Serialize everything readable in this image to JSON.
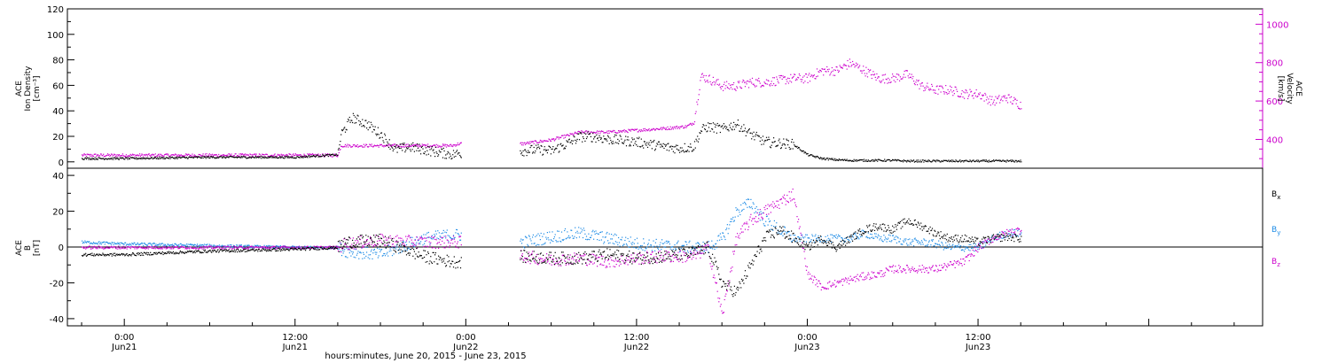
{
  "chart_data": [
    {
      "type": "scatter",
      "panel": "top",
      "ylabel_left": [
        "ACE",
        "Ion Density",
        "[cm⁻³]"
      ],
      "ylabel_right": [
        "ACE",
        "Velocity",
        "[km/s]"
      ],
      "ylim_left": [
        -5,
        120
      ],
      "ylim_right": [
        250,
        1080
      ],
      "yticks_left": [
        "0",
        "20",
        "40",
        "60",
        "80",
        "100",
        "120"
      ],
      "yticks_right": [
        "400",
        "600",
        "800",
        "1000"
      ],
      "colors": {
        "density": "#000000",
        "velocity": "#cc00cc"
      },
      "series": [
        {
          "name": "Ion Density",
          "axis": "left",
          "x_hours": [
            -3,
            0,
            6,
            12,
            15,
            15.2,
            16,
            17,
            18,
            19,
            20,
            21,
            22,
            23,
            23.5,
            28,
            29,
            30,
            31,
            32,
            33,
            34,
            35,
            36,
            37,
            38,
            39,
            40,
            40.5,
            41,
            42,
            43,
            44,
            45,
            46,
            47,
            48,
            49,
            50,
            51,
            52,
            53,
            54,
            55,
            56,
            57,
            58,
            59,
            60,
            61,
            62,
            63
          ],
          "values": [
            3,
            3,
            4,
            4,
            6,
            22,
            35,
            30,
            22,
            10,
            12,
            10,
            8,
            6,
            7,
            9,
            10,
            9,
            14,
            20,
            20,
            18,
            17,
            16,
            14,
            12,
            11,
            12,
            25,
            28,
            26,
            30,
            22,
            16,
            15,
            14,
            6,
            3,
            2,
            1.5,
            1.5,
            1.5,
            1.5,
            1,
            1,
            1,
            1,
            1,
            1,
            1,
            1,
            1
          ]
        },
        {
          "name": "Velocity",
          "axis": "right",
          "x_hours": [
            -3,
            0,
            6,
            12,
            15,
            15.2,
            18,
            21,
            23,
            23.5,
            28,
            29,
            30,
            32,
            34,
            36,
            38,
            39.5,
            40,
            40.5,
            41,
            42,
            43,
            44,
            45,
            46,
            47,
            48,
            49,
            50,
            51,
            52,
            53,
            54,
            55,
            56,
            57,
            58,
            59,
            60,
            61,
            62,
            63
          ],
          "values": [
            320,
            320,
            320,
            320,
            320,
            370,
            370,
            370,
            370,
            380,
            380,
            390,
            400,
            440,
            440,
            450,
            460,
            470,
            490,
            730,
            720,
            680,
            680,
            700,
            700,
            710,
            720,
            720,
            760,
            760,
            800,
            760,
            720,
            720,
            740,
            680,
            660,
            660,
            640,
            640,
            600,
            620,
            580
          ]
        }
      ]
    },
    {
      "type": "scatter",
      "panel": "bottom",
      "ylabel_left": [
        "ACE",
        "B",
        "[nT]"
      ],
      "ylim": [
        -44,
        44
      ],
      "yticks": [
        "-40",
        "-20",
        "0",
        "20",
        "40"
      ],
      "legend": [
        "Bx",
        "By",
        "Bz"
      ],
      "colors": {
        "Bx": "#000000",
        "By": "#1e8ce6",
        "Bz": "#cc00cc"
      },
      "series": [
        {
          "name": "Bx",
          "x_hours": [
            -3,
            0,
            6,
            12,
            15,
            15.5,
            18,
            21,
            23,
            23.5,
            28,
            30,
            32,
            34,
            36,
            38,
            40,
            41,
            42,
            43,
            44,
            45,
            46,
            47,
            48,
            49,
            50,
            51,
            52,
            53,
            54,
            55,
            56,
            57,
            58,
            59,
            60,
            61,
            62,
            63
          ],
          "values": [
            -4,
            -4,
            -2,
            -1,
            0,
            3,
            4,
            -5,
            -8,
            -8,
            -5,
            -6,
            -6,
            -4,
            -6,
            -5,
            -3,
            0,
            -20,
            -25,
            -10,
            5,
            10,
            5,
            0,
            5,
            0,
            5,
            10,
            12,
            10,
            15,
            12,
            8,
            5,
            5,
            3,
            5,
            6,
            5
          ]
        },
        {
          "name": "By",
          "x_hours": [
            -3,
            0,
            6,
            12,
            15,
            15.5,
            18,
            21,
            23,
            23.5,
            28,
            30,
            32,
            34,
            36,
            38,
            40,
            41,
            42,
            43,
            44,
            45,
            46,
            47,
            48,
            49,
            50,
            51,
            52,
            53,
            54,
            55,
            56,
            57,
            58,
            59,
            60,
            61,
            62,
            63
          ],
          "values": [
            3,
            2,
            1,
            0,
            0,
            -2,
            -4,
            5,
            7,
            7,
            3,
            6,
            8,
            5,
            2,
            1,
            0,
            0,
            5,
            20,
            25,
            15,
            10,
            5,
            5,
            5,
            5,
            5,
            8,
            5,
            5,
            3,
            3,
            2,
            0,
            0,
            0,
            5,
            8,
            8
          ]
        },
        {
          "name": "Bz",
          "x_hours": [
            -3,
            0,
            6,
            12,
            15,
            15.5,
            18,
            21,
            23,
            23.5,
            28,
            30,
            32,
            34,
            36,
            38,
            40,
            41,
            42,
            43,
            44,
            45,
            46,
            47,
            48,
            49,
            50,
            51,
            52,
            53,
            54,
            55,
            56,
            57,
            58,
            59,
            60,
            61,
            62,
            63
          ],
          "values": [
            0,
            0,
            0,
            0,
            0,
            2,
            4,
            3,
            3,
            3,
            -5,
            -7,
            -6,
            -8,
            -6,
            -5,
            -5,
            0,
            -38,
            5,
            15,
            20,
            25,
            30,
            -15,
            -22,
            -20,
            -18,
            -16,
            -15,
            -12,
            -12,
            -12,
            -12,
            -10,
            -8,
            0,
            5,
            8,
            10
          ]
        }
      ]
    }
  ],
  "x_axis": {
    "xlim_hours": [
      -4,
      80
    ],
    "ticks": [
      {
        "hour": 0,
        "time": "0:00",
        "date": "Jun21"
      },
      {
        "hour": 12,
        "time": "12:00",
        "date": "Jun21"
      },
      {
        "hour": 24,
        "time": "0:00",
        "date": "Jun22"
      },
      {
        "hour": 36,
        "time": "12:00",
        "date": "Jun22"
      },
      {
        "hour": 48,
        "time": "0:00",
        "date": "Jun23"
      },
      {
        "hour": 60,
        "time": "12:00",
        "date": "Jun23"
      }
    ],
    "caption": "hours:minutes, June 20, 2015 - June 23, 2015"
  }
}
